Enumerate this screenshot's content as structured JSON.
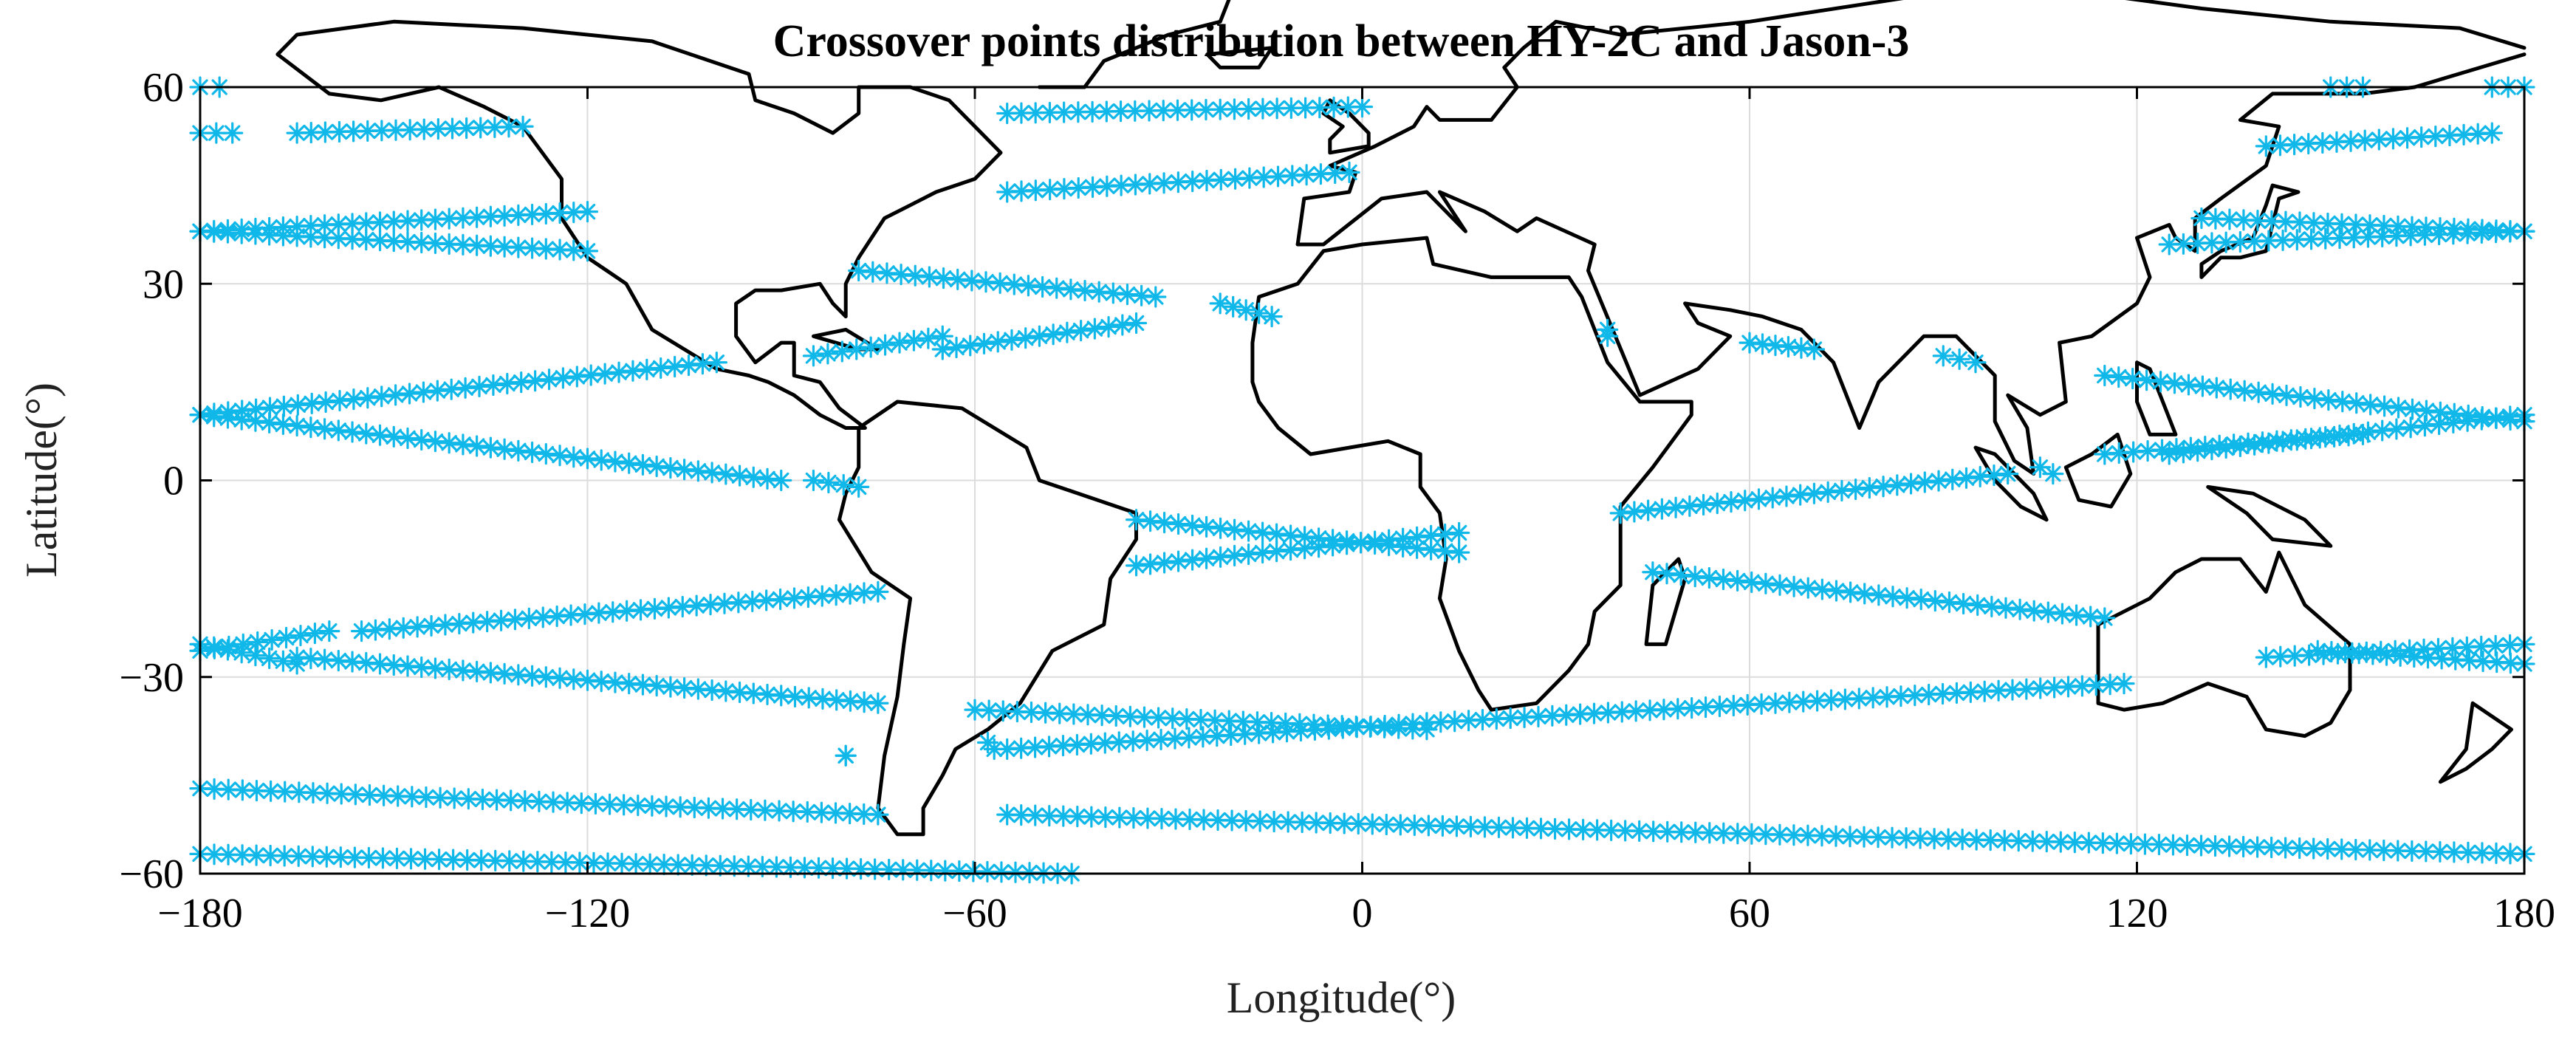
{
  "chart_data": {
    "type": "scatter",
    "title": "Crossover points distribution between HY-2C and Jason-3",
    "xlabel": "Longitude(°)",
    "ylabel": "Latitude(°)",
    "xlim": [
      -180,
      180
    ],
    "ylim": [
      -60,
      60
    ],
    "x_ticks": [
      "−180",
      "−120",
      "−60",
      "0",
      "60",
      "120",
      "180"
    ],
    "y_ticks": [
      "60",
      "30",
      "0",
      "−30",
      "−60"
    ],
    "grid": true,
    "marker": "asterisk",
    "marker_color": "#10b8ea",
    "coastline_color": "#000000",
    "background": "land and ocean white, coastlines black",
    "tracks": [
      {
        "from": [
          -180,
          60
        ],
        "to": [
          -177,
          60
        ]
      },
      {
        "from": [
          -180,
          53
        ],
        "to": [
          -175,
          53
        ]
      },
      {
        "from": [
          -165,
          53
        ],
        "to": [
          -130,
          54
        ]
      },
      {
        "from": [
          -180,
          38
        ],
        "to": [
          -120,
          41
        ]
      },
      {
        "from": [
          -180,
          38
        ],
        "to": [
          -120,
          35
        ]
      },
      {
        "from": [
          -180,
          10
        ],
        "to": [
          -100,
          18
        ]
      },
      {
        "from": [
          -180,
          10
        ],
        "to": [
          -90,
          0
        ]
      },
      {
        "from": [
          -85,
          0
        ],
        "to": [
          -78,
          -1
        ]
      },
      {
        "from": [
          -180,
          -26
        ],
        "to": [
          -160,
          -23
        ]
      },
      {
        "from": [
          -180,
          -25
        ],
        "to": [
          -165,
          -28
        ]
      },
      {
        "from": [
          -155,
          -23
        ],
        "to": [
          -75,
          -17
        ]
      },
      {
        "from": [
          -165,
          -27
        ],
        "to": [
          -75,
          -34
        ]
      },
      {
        "from": [
          -80,
          -42
        ],
        "to": [
          -80,
          -42
        ]
      },
      {
        "from": [
          -180,
          -47
        ],
        "to": [
          -75,
          -51
        ]
      },
      {
        "from": [
          -180,
          -57
        ],
        "to": [
          -45,
          -60
        ]
      },
      {
        "from": [
          -55,
          56
        ],
        "to": [
          0,
          57
        ]
      },
      {
        "from": [
          -55,
          44
        ],
        "to": [
          -2,
          47
        ]
      },
      {
        "from": [
          -78,
          32
        ],
        "to": [
          -32,
          28
        ]
      },
      {
        "from": [
          -85,
          19
        ],
        "to": [
          -65,
          22
        ]
      },
      {
        "from": [
          -65,
          20
        ],
        "to": [
          -35,
          24
        ]
      },
      {
        "from": [
          -22,
          27
        ],
        "to": [
          -14,
          25
        ]
      },
      {
        "from": [
          -35,
          -6
        ],
        "to": [
          15,
          -11
        ]
      },
      {
        "from": [
          -35,
          -13
        ],
        "to": [
          15,
          -8
        ]
      },
      {
        "from": [
          -60,
          -35
        ],
        "to": [
          10,
          -38
        ]
      },
      {
        "from": [
          -55,
          -41
        ],
        "to": [
          10,
          -37
        ]
      },
      {
        "from": [
          -58,
          -40
        ],
        "to": [
          -57,
          -41
        ]
      },
      {
        "from": [
          -55,
          -51
        ],
        "to": [
          180,
          -57
        ]
      },
      {
        "from": [
          10,
          -37
        ],
        "to": [
          118,
          -31
        ]
      },
      {
        "from": [
          40,
          -5
        ],
        "to": [
          100,
          1
        ]
      },
      {
        "from": [
          45,
          -14
        ],
        "to": [
          115,
          -21
        ]
      },
      {
        "from": [
          60,
          21
        ],
        "to": [
          70,
          20
        ]
      },
      {
        "from": [
          90,
          19
        ],
        "to": [
          95,
          18
        ]
      },
      {
        "from": [
          38,
          23
        ],
        "to": [
          38,
          22
        ]
      },
      {
        "from": [
          105,
          2
        ],
        "to": [
          107,
          1
        ]
      },
      {
        "from": [
          115,
          16
        ],
        "to": [
          180,
          9
        ]
      },
      {
        "from": [
          115,
          4
        ],
        "to": [
          155,
          7
        ]
      },
      {
        "from": [
          125,
          4
        ],
        "to": [
          180,
          10
        ]
      },
      {
        "from": [
          130,
          40
        ],
        "to": [
          180,
          38
        ]
      },
      {
        "from": [
          125,
          36
        ],
        "to": [
          180,
          38
        ]
      },
      {
        "from": [
          140,
          -27
        ],
        "to": [
          180,
          -25
        ]
      },
      {
        "from": [
          148,
          -26
        ],
        "to": [
          180,
          -28
        ]
      },
      {
        "from": [
          140,
          51
        ],
        "to": [
          175,
          53
        ]
      },
      {
        "from": [
          150,
          60
        ],
        "to": [
          155,
          60
        ]
      },
      {
        "from": [
          175,
          60
        ],
        "to": [
          180,
          60
        ]
      }
    ]
  }
}
